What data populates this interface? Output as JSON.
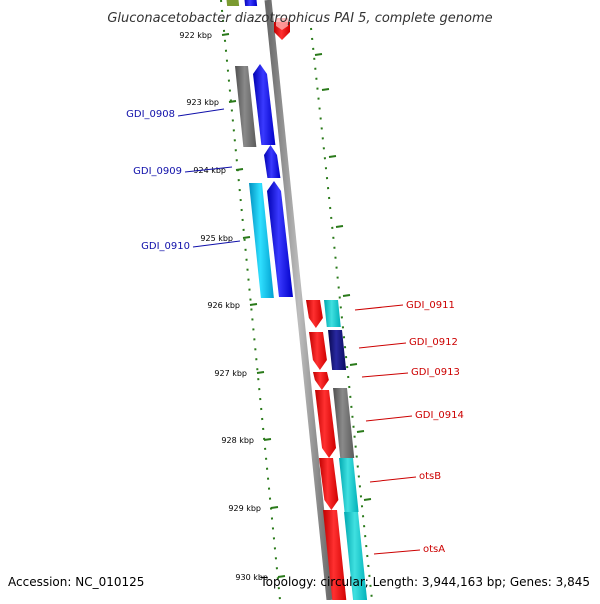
{
  "genome_title": "Gluconacetobacter diazotrophicus PAI 5, complete genome",
  "accession_text": "Accession: NC_010125",
  "summary_text": "Topology: circular; Length: 3,944,163 bp; Genes: 3,845",
  "ruler_ticks": [
    "922 kbp",
    "923 kbp",
    "924 kbp",
    "925 kbp",
    "926 kbp",
    "927 kbp",
    "928 kbp",
    "929 kbp",
    "930 kbp"
  ],
  "left_gene_labels": [
    "GDI_0908",
    "GDI_0909",
    "GDI_0910"
  ],
  "right_gene_labels": [
    "GDI_0911",
    "GDI_0912",
    "GDI_0913",
    "GDI_0914",
    "otsB",
    "otsA"
  ],
  "colors": {
    "backbone": "#8a8a8a",
    "tick_green": "#2a7a1a",
    "forward_gene": "#1010ee",
    "reverse_gene": "#ee1010",
    "left_label": "#1010aa",
    "right_label": "#cc0000",
    "gray_feature": "#6a6a6a",
    "cyan_feature": "#10c0e8",
    "navy_feature": "#14147a"
  }
}
